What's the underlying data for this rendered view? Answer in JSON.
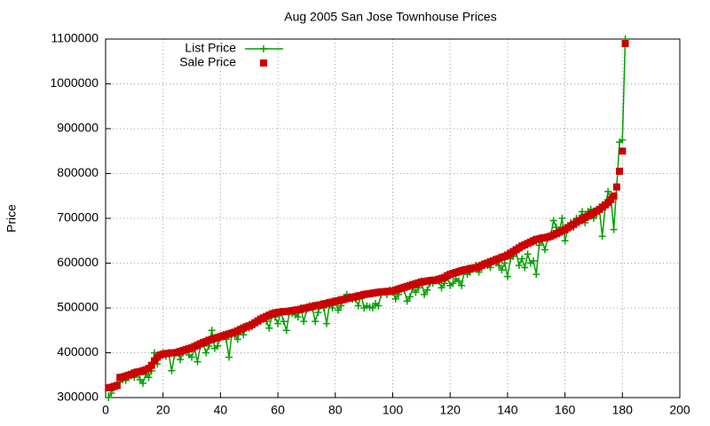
{
  "chart_data": {
    "type": "line",
    "title": "Aug 2005 San Jose Townhouse Prices",
    "y_label": "Price",
    "x": [
      1,
      2,
      3,
      4,
      5,
      6,
      7,
      8,
      9,
      10,
      11,
      12,
      13,
      14,
      15,
      16,
      17,
      18,
      19,
      20,
      21,
      22,
      23,
      24,
      25,
      26,
      27,
      28,
      29,
      30,
      31,
      32,
      33,
      34,
      35,
      36,
      37,
      38,
      39,
      40,
      41,
      42,
      43,
      44,
      45,
      46,
      47,
      48,
      49,
      50,
      51,
      52,
      53,
      54,
      55,
      56,
      57,
      58,
      59,
      60,
      61,
      62,
      63,
      64,
      65,
      66,
      67,
      68,
      69,
      70,
      71,
      72,
      73,
      74,
      75,
      76,
      77,
      78,
      79,
      80,
      81,
      82,
      83,
      84,
      85,
      86,
      87,
      88,
      89,
      90,
      91,
      92,
      93,
      94,
      95,
      96,
      97,
      98,
      99,
      100,
      101,
      102,
      103,
      104,
      105,
      106,
      107,
      108,
      109,
      110,
      111,
      112,
      113,
      114,
      115,
      116,
      117,
      118,
      119,
      120,
      121,
      122,
      123,
      124,
      125,
      126,
      127,
      128,
      129,
      130,
      131,
      132,
      133,
      134,
      135,
      136,
      137,
      138,
      139,
      140,
      141,
      142,
      143,
      144,
      145,
      146,
      147,
      148,
      149,
      150,
      151,
      152,
      153,
      154,
      155,
      156,
      157,
      158,
      159,
      160,
      161,
      162,
      163,
      164,
      165,
      166,
      167,
      168,
      169,
      170,
      171,
      172,
      173,
      174,
      175,
      176,
      177,
      178,
      179,
      180,
      181
    ],
    "series": [
      {
        "name": "List Price",
        "color": "#00a000",
        "mode": "lines+markers",
        "values": [
          300000,
          310000,
          322000,
          330000,
          335000,
          340000,
          338000,
          345000,
          350000,
          345000,
          355000,
          340000,
          332000,
          352000,
          345000,
          360000,
          400000,
          375000,
          395000,
          400000,
          392000,
          398000,
          360000,
          395000,
          402000,
          385000,
          400000,
          408000,
          395000,
          390000,
          410000,
          380000,
          415000,
          420000,
          400000,
          415000,
          450000,
          410000,
          415000,
          435000,
          440000,
          430000,
          390000,
          445000,
          440000,
          430000,
          455000,
          440000,
          460000,
          455000,
          458000,
          470000,
          475000,
          470000,
          480000,
          470000,
          455000,
          485000,
          480000,
          465000,
          490000,
          470000,
          450000,
          490000,
          488000,
          485000,
          480000,
          500000,
          470000,
          495000,
          505000,
          500000,
          470000,
          490000,
          505000,
          500000,
          465000,
          510000,
          500000,
          515000,
          495000,
          505000,
          520000,
          530000,
          525000,
          520000,
          520000,
          505000,
          530000,
          500000,
          505000,
          502000,
          500000,
          510000,
          505000,
          530000,
          535000,
          530000,
          540000,
          535000,
          520000,
          530000,
          545000,
          540000,
          515000,
          525000,
          545000,
          535000,
          545000,
          560000,
          530000,
          540000,
          555000,
          555000,
          560000,
          560000,
          545000,
          555000,
          570000,
          550000,
          555000,
          565000,
          560000,
          550000,
          585000,
          575000,
          580000,
          590000,
          595000,
          580000,
          590000,
          600000,
          595000,
          590000,
          605000,
          600000,
          595000,
          585000,
          600000,
          570000,
          610000,
          615000,
          625000,
          595000,
          610000,
          590000,
          620000,
          600000,
          605000,
          575000,
          640000,
          650000,
          630000,
          655000,
          660000,
          695000,
          680000,
          670000,
          700000,
          650000,
          675000,
          690000,
          680000,
          700000,
          700000,
          715000,
          690000,
          715000,
          720000,
          700000,
          710000,
          720000,
          660000,
          725000,
          760000,
          745000,
          675000,
          770000,
          870000,
          875000,
          1100000
        ]
      },
      {
        "name": "Sale Price",
        "color": "#cc0000",
        "mode": "markers",
        "values": [
          322000,
          323000,
          325000,
          327000,
          345000,
          346000,
          348000,
          350000,
          352000,
          355000,
          357000,
          358000,
          360000,
          362000,
          365000,
          372000,
          382000,
          390000,
          395000,
          397000,
          398000,
          399000,
          400000,
          400000,
          401000,
          403000,
          405000,
          407000,
          409000,
          411000,
          414000,
          417000,
          420000,
          423000,
          425000,
          428000,
          430000,
          432000,
          434000,
          436000,
          438000,
          440000,
          442000,
          444000,
          446000,
          449000,
          452000,
          455000,
          458000,
          460000,
          463000,
          467000,
          471000,
          475000,
          478000,
          481000,
          484000,
          487000,
          489000,
          490000,
          491000,
          492000,
          492000,
          493000,
          494000,
          495000,
          496000,
          497000,
          499000,
          500000,
          502000,
          503000,
          505000,
          506000,
          507000,
          509000,
          510000,
          512000,
          513000,
          515000,
          516000,
          518000,
          519000,
          521000,
          522000,
          524000,
          525000,
          527000,
          528000,
          530000,
          531000,
          532000,
          533000,
          534000,
          535000,
          536000,
          536000,
          537000,
          537000,
          538000,
          540000,
          542000,
          544000,
          546000,
          548000,
          550000,
          552000,
          554000,
          556000,
          558000,
          559000,
          560000,
          561000,
          562000,
          562000,
          564000,
          566000,
          568000,
          572000,
          575000,
          577000,
          579000,
          581000,
          583000,
          585000,
          586000,
          588000,
          589000,
          590000,
          592000,
          595000,
          598000,
          600000,
          603000,
          605000,
          608000,
          610000,
          613000,
          615000,
          618000,
          622000,
          626000,
          630000,
          634000,
          638000,
          641000,
          644000,
          647000,
          650000,
          653000,
          654000,
          656000,
          657000,
          658000,
          660000,
          663000,
          666000,
          669000,
          672000,
          675000,
          679000,
          683000,
          687000,
          691000,
          695000,
          698000,
          702000,
          705000,
          709000,
          712000,
          716000,
          720000,
          725000,
          730000,
          735000,
          742000,
          750000,
          770000,
          805000,
          850000,
          1090000
        ]
      }
    ],
    "xlim": [
      0,
      200
    ],
    "ylim": [
      300000,
      1100000
    ],
    "xticks": [
      0,
      20,
      40,
      60,
      80,
      100,
      120,
      140,
      160,
      180,
      200
    ],
    "yticks": [
      300000,
      400000,
      500000,
      600000,
      700000,
      800000,
      900000,
      1000000,
      1100000
    ],
    "grid": true,
    "legend": "top-left"
  }
}
